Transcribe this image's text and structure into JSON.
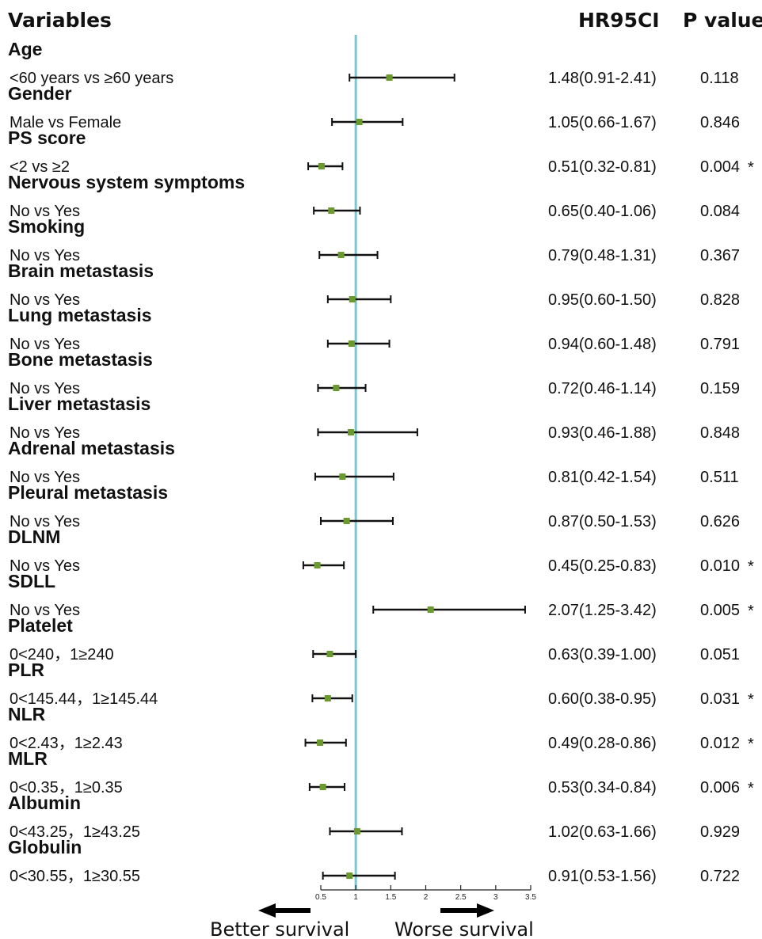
{
  "header": {
    "variables_label": "Variables",
    "hr_label": "HR95CI",
    "p_label": "P value"
  },
  "chart_data": {
    "type": "forest",
    "reference_line": 1,
    "xlim": [
      0.5,
      3.5
    ],
    "x_ticks": [
      "0.5",
      "1",
      "1.5",
      "2",
      "2.5",
      "3",
      "3.5"
    ],
    "x_tick_values": [
      0.5,
      1,
      1.5,
      2,
      2.5,
      3,
      3.5
    ],
    "rows": [
      {
        "variable": "Age",
        "comparison": "<60 years vs ≥60 years",
        "hr": 1.48,
        "lo": 0.91,
        "hi": 2.41,
        "hr_text": "1.48(0.91-2.41)",
        "p_text": "0.118",
        "sig": ""
      },
      {
        "variable": "Gender",
        "comparison": "Male vs Female",
        "hr": 1.05,
        "lo": 0.66,
        "hi": 1.67,
        "hr_text": "1.05(0.66-1.67)",
        "p_text": "0.846",
        "sig": ""
      },
      {
        "variable": "PS score",
        "comparison": "<2 vs ≥2",
        "hr": 0.51,
        "lo": 0.32,
        "hi": 0.81,
        "hr_text": "0.51(0.32-0.81)",
        "p_text": "0.004",
        "sig": "*"
      },
      {
        "variable": "Nervous system symptoms",
        "comparison": "No vs Yes",
        "hr": 0.65,
        "lo": 0.4,
        "hi": 1.06,
        "hr_text": "0.65(0.40-1.06)",
        "p_text": "0.084",
        "sig": ""
      },
      {
        "variable": "Smoking",
        "comparison": "No vs Yes",
        "hr": 0.79,
        "lo": 0.48,
        "hi": 1.31,
        "hr_text": "0.79(0.48-1.31)",
        "p_text": "0.367",
        "sig": ""
      },
      {
        "variable": "Brain metastasis",
        "comparison": "No vs Yes",
        "hr": 0.95,
        "lo": 0.6,
        "hi": 1.5,
        "hr_text": "0.95(0.60-1.50)",
        "p_text": "0.828",
        "sig": ""
      },
      {
        "variable": "Lung metastasis",
        "comparison": "No vs Yes",
        "hr": 0.94,
        "lo": 0.6,
        "hi": 1.48,
        "hr_text": "0.94(0.60-1.48)",
        "p_text": "0.791",
        "sig": ""
      },
      {
        "variable": "Bone metastasis",
        "comparison": "No vs Yes",
        "hr": 0.72,
        "lo": 0.46,
        "hi": 1.14,
        "hr_text": "0.72(0.46-1.14)",
        "p_text": "0.159",
        "sig": ""
      },
      {
        "variable": "Liver metastasis",
        "comparison": "No vs Yes",
        "hr": 0.93,
        "lo": 0.46,
        "hi": 1.88,
        "hr_text": "0.93(0.46-1.88)",
        "p_text": "0.848",
        "sig": ""
      },
      {
        "variable": "Adrenal metastasis",
        "comparison": "No vs Yes",
        "hr": 0.81,
        "lo": 0.42,
        "hi": 1.54,
        "hr_text": "0.81(0.42-1.54)",
        "p_text": "0.511",
        "sig": ""
      },
      {
        "variable": "Pleural metastasis",
        "comparison": "No vs Yes",
        "hr": 0.87,
        "lo": 0.5,
        "hi": 1.53,
        "hr_text": "0.87(0.50-1.53)",
        "p_text": "0.626",
        "sig": ""
      },
      {
        "variable": "DLNM",
        "comparison": "No vs Yes",
        "hr": 0.45,
        "lo": 0.25,
        "hi": 0.83,
        "hr_text": "0.45(0.25-0.83)",
        "p_text": "0.010",
        "sig": "*"
      },
      {
        "variable": "SDLL",
        "comparison": "No vs Yes",
        "hr": 2.07,
        "lo": 1.25,
        "hi": 3.42,
        "hr_text": "2.07(1.25-3.42)",
        "p_text": "0.005",
        "sig": "*"
      },
      {
        "variable": "Platelet",
        "comparison": "0<240，1≥240",
        "hr": 0.63,
        "lo": 0.39,
        "hi": 1.0,
        "hr_text": "0.63(0.39-1.00)",
        "p_text": "0.051",
        "sig": ""
      },
      {
        "variable": "PLR",
        "comparison": "0<145.44，1≥145.44",
        "hr": 0.6,
        "lo": 0.38,
        "hi": 0.95,
        "hr_text": "0.60(0.38-0.95)",
        "p_text": "0.031",
        "sig": "*"
      },
      {
        "variable": "NLR",
        "comparison": "0<2.43，1≥2.43",
        "hr": 0.49,
        "lo": 0.28,
        "hi": 0.86,
        "hr_text": "0.49(0.28-0.86)",
        "p_text": "0.012",
        "sig": "*"
      },
      {
        "variable": "MLR",
        "comparison": "0<0.35，1≥0.35",
        "hr": 0.53,
        "lo": 0.34,
        "hi": 0.84,
        "hr_text": "0.53(0.34-0.84)",
        "p_text": "0.006",
        "sig": "*"
      },
      {
        "variable": "Albumin",
        "comparison": "0<43.25，1≥43.25",
        "hr": 1.02,
        "lo": 0.63,
        "hi": 1.66,
        "hr_text": "1.02(0.63-1.66)",
        "p_text": "0.929",
        "sig": ""
      },
      {
        "variable": "Globulin",
        "comparison": "0<30.55，1≥30.55",
        "hr": 0.91,
        "lo": 0.53,
        "hi": 1.56,
        "hr_text": "0.91(0.53-1.56)",
        "p_text": "0.722",
        "sig": ""
      }
    ],
    "footer": {
      "left_label": "Better survival",
      "right_label": "Worse survival"
    },
    "colors": {
      "reference_line": "#7fc4cf",
      "point": "#6a9a2e",
      "whisker": "#111111"
    }
  }
}
